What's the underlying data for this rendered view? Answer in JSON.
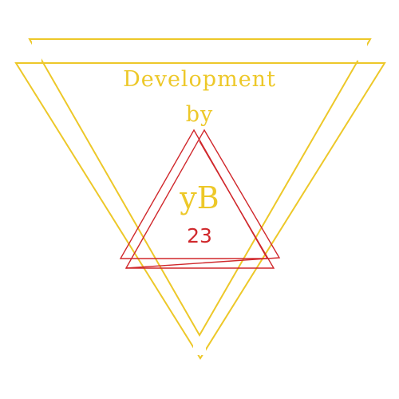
{
  "logo": {
    "line1": "Development",
    "line2": "by",
    "monogram": "yB",
    "number": "23"
  },
  "colors": {
    "gold": "#edc829",
    "red": "#d0282c",
    "background": "#ffffff"
  }
}
